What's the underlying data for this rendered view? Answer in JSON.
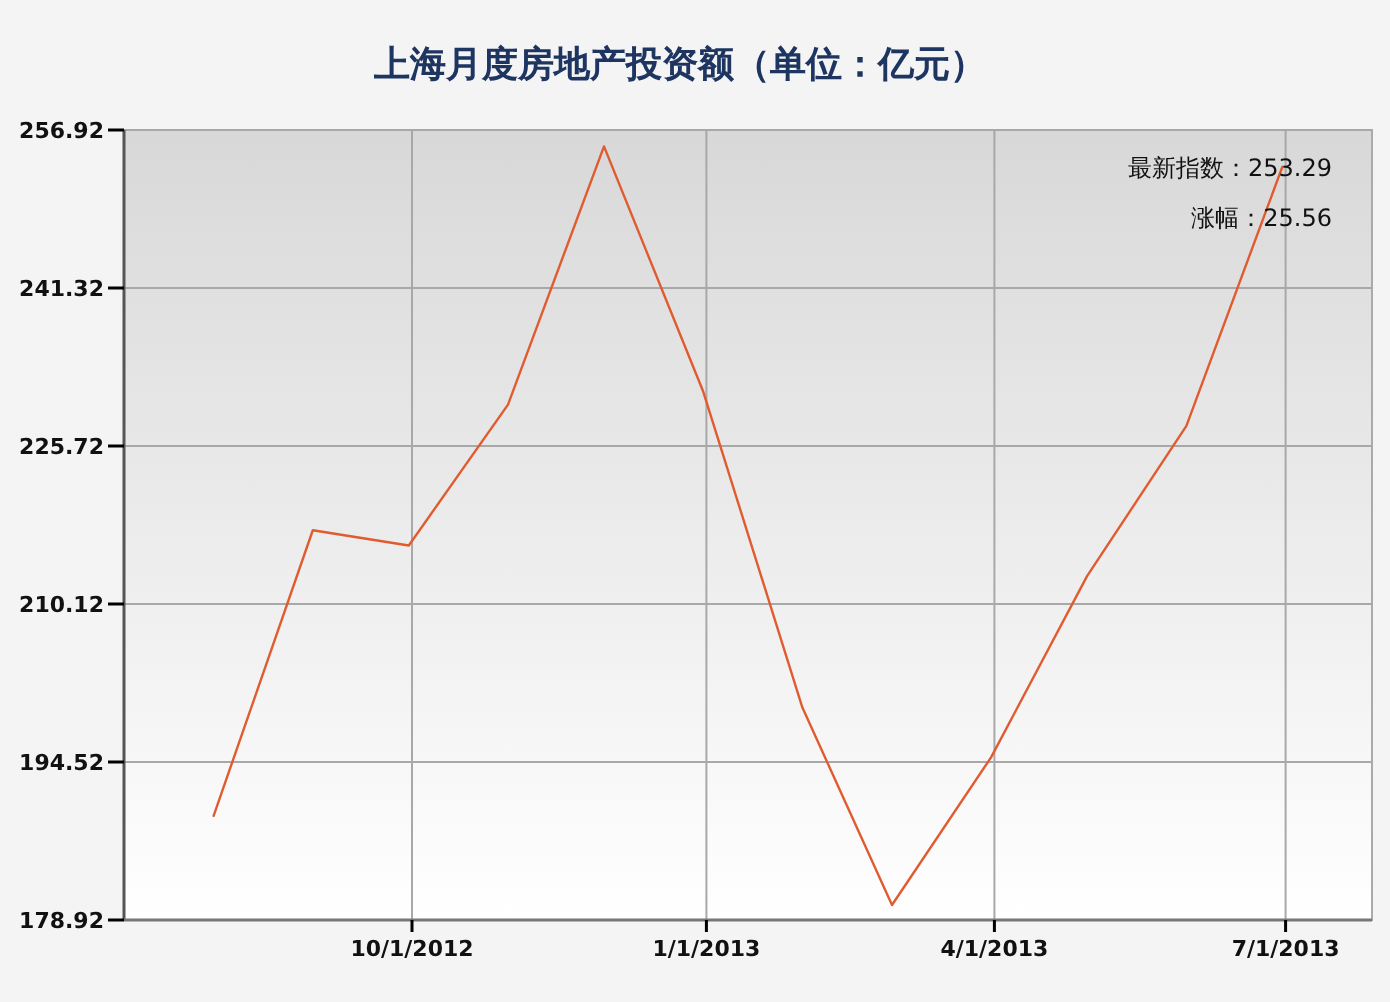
{
  "chart_data": {
    "type": "line",
    "title": "上海月度房地产投资额（单位：亿元）",
    "x": [
      "2012-07-31",
      "2012-08-31",
      "2012-09-30",
      "2012-10-31",
      "2012-11-30",
      "2012-12-31",
      "2013-01-31",
      "2013-02-28",
      "2013-03-31",
      "2013-04-30",
      "2013-05-31",
      "2013-06-30"
    ],
    "values": [
      189.2,
      217.4,
      215.9,
      229.8,
      255.3,
      231.1,
      199.9,
      180.4,
      195.0,
      212.9,
      227.7,
      253.29
    ],
    "color": "#e05c30",
    "xlim": [
      "2012-07-03",
      "2013-07-28"
    ],
    "xticks": [
      {
        "value": "2012-10-01",
        "label": "10/1/2012"
      },
      {
        "value": "2013-01-01",
        "label": "1/1/2013"
      },
      {
        "value": "2013-04-01",
        "label": "4/1/2013"
      },
      {
        "value": "2013-07-01",
        "label": "7/1/2013"
      }
    ],
    "ylim": [
      178.92,
      256.92
    ],
    "yticks": [
      178.92,
      194.52,
      210.12,
      225.72,
      241.32,
      256.92
    ],
    "grid": true,
    "annotations": [
      "最新指数：253.29",
      "涨幅：25.56"
    ]
  }
}
